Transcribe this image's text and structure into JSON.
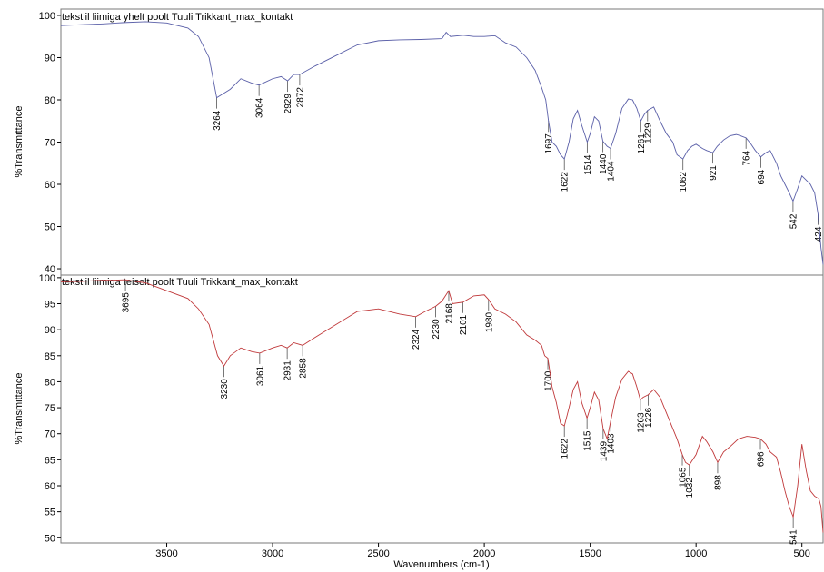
{
  "chart_data": [
    {
      "type": "line",
      "title": "tekstiil liimiga yhelt poolt Tuuli Trikkant_max_kontakt",
      "xlabel": "Wavenumbers (cm-1)",
      "ylabel": "%Transmittance",
      "xlim": [
        4000,
        400
      ],
      "x_reversed": true,
      "ylim": [
        38.5,
        101.5
      ],
      "xticks": [
        3500,
        3000,
        2500,
        2000,
        1500,
        1000,
        500
      ],
      "yticks": [
        40,
        50,
        60,
        70,
        80,
        90,
        100
      ],
      "color": "#5a5fa8",
      "series": [
        {
          "x": [
            4000,
            3900,
            3800,
            3700,
            3600,
            3500,
            3400,
            3350,
            3300,
            3264,
            3200,
            3150,
            3100,
            3064,
            3000,
            2960,
            2929,
            2900,
            2872,
            2800,
            2700,
            2600,
            2500,
            2400,
            2300,
            2200,
            2180,
            2160,
            2100,
            2050,
            2000,
            1950,
            1900,
            1850,
            1800,
            1760,
            1730,
            1710,
            1697,
            1680,
            1660,
            1640,
            1622,
            1600,
            1580,
            1560,
            1540,
            1514,
            1500,
            1480,
            1460,
            1440,
            1420,
            1404,
            1380,
            1350,
            1320,
            1300,
            1280,
            1261,
            1245,
            1229,
            1200,
            1170,
            1140,
            1110,
            1090,
            1062,
            1040,
            1020,
            1000,
            970,
            950,
            921,
            900,
            870,
            840,
            810,
            790,
            764,
            740,
            720,
            694,
            670,
            650,
            620,
            600,
            580,
            560,
            542,
            520,
            500,
            480,
            460,
            440,
            424,
            410,
            400
          ],
          "y": [
            97.6,
            97.8,
            98,
            98.3,
            98.5,
            98.2,
            97,
            95,
            90,
            80.5,
            82.5,
            85,
            84,
            83.5,
            85,
            85.5,
            84.5,
            86,
            86,
            88,
            90.5,
            93,
            94,
            94.2,
            94.3,
            94.5,
            96,
            95,
            95.3,
            95,
            95,
            95.2,
            93.5,
            92.5,
            90,
            87,
            83,
            80,
            75,
            70,
            69,
            67,
            66,
            70,
            75.5,
            77.5,
            74,
            70,
            72,
            76,
            75,
            70.2,
            69,
            68.5,
            72,
            78,
            80.2,
            80,
            78,
            75,
            76.5,
            77.5,
            78.3,
            75,
            72,
            70,
            67,
            66,
            68,
            69,
            69.5,
            68.5,
            68,
            67.5,
            69,
            70.5,
            71.5,
            71.8,
            71.5,
            71,
            69.5,
            68,
            66.5,
            67.5,
            68,
            65,
            62,
            60,
            58,
            56,
            59,
            62,
            61,
            60,
            58,
            53,
            45,
            41
          ]
        }
      ],
      "peaks": [
        "3264",
        "3064",
        "2929",
        "2872",
        "1697",
        "1622",
        "1514",
        "1440",
        "1404",
        "1261",
        "1229",
        "1062",
        "921",
        "764",
        "694",
        "542",
        "424"
      ]
    },
    {
      "type": "line",
      "title": "tekstiil liimiga teiselt poolt Tuuli Trikkant_max_kontakt",
      "xlabel": "Wavenumbers (cm-1)",
      "ylabel": "%Transmittance",
      "xlim": [
        4000,
        400
      ],
      "x_reversed": true,
      "ylim": [
        49,
        100.5
      ],
      "xticks": [
        3500,
        3000,
        2500,
        2000,
        1500,
        1000,
        500
      ],
      "yticks": [
        50,
        55,
        60,
        65,
        70,
        75,
        80,
        85,
        90,
        95,
        100
      ],
      "color": "#c0393b",
      "series": [
        {
          "x": [
            4000,
            3900,
            3800,
            3760,
            3700,
            3695,
            3650,
            3600,
            3500,
            3400,
            3350,
            3300,
            3260,
            3230,
            3200,
            3150,
            3100,
            3061,
            3000,
            2960,
            2931,
            2900,
            2858,
            2800,
            2700,
            2600,
            2500,
            2400,
            2324,
            2280,
            2230,
            2200,
            2168,
            2150,
            2101,
            2050,
            2000,
            1980,
            1950,
            1900,
            1850,
            1800,
            1760,
            1730,
            1715,
            1700,
            1680,
            1660,
            1640,
            1622,
            1600,
            1580,
            1560,
            1540,
            1515,
            1500,
            1480,
            1460,
            1439,
            1420,
            1403,
            1380,
            1350,
            1320,
            1300,
            1280,
            1263,
            1250,
            1226,
            1200,
            1170,
            1140,
            1110,
            1090,
            1065,
            1050,
            1032,
            1000,
            970,
            950,
            920,
            898,
            870,
            840,
            800,
            760,
            720,
            696,
            670,
            650,
            620,
            600,
            580,
            560,
            541,
            520,
            500,
            480,
            460,
            440,
            420,
            410,
            400
          ],
          "y": [
            99.2,
            99.3,
            99.5,
            99.5,
            99.6,
            99.6,
            99.3,
            99,
            97.5,
            96,
            94,
            91,
            85,
            83,
            85,
            86.5,
            85.8,
            85.5,
            86.5,
            87,
            86.5,
            87.5,
            87,
            88.5,
            91,
            93.5,
            94,
            93,
            92.5,
            93.5,
            94.5,
            95.5,
            97.5,
            95,
            95.3,
            96.5,
            96.7,
            95.8,
            94,
            93,
            91.5,
            89,
            88,
            87,
            85,
            84.5,
            79,
            76,
            72,
            71.5,
            75,
            78.5,
            80,
            76,
            73,
            75,
            78,
            76.5,
            71,
            69,
            72.5,
            77,
            80.5,
            82,
            81.5,
            79,
            76.5,
            77,
            77.5,
            78.5,
            77,
            74,
            71,
            69,
            66,
            64.5,
            64,
            66,
            69.5,
            68.5,
            66.5,
            64.5,
            66.5,
            67.5,
            69,
            69.5,
            69.3,
            69,
            68,
            66.5,
            65.5,
            62.5,
            59,
            56,
            54,
            60,
            68,
            63,
            59,
            58,
            57.5,
            56,
            51
          ]
        }
      ],
      "peaks": [
        "3695",
        "3230",
        "3061",
        "2931",
        "2858",
        "2324",
        "2230",
        "2168",
        "2101",
        "1980",
        "1700",
        "1622",
        "1515",
        "1439",
        "1403",
        "1263",
        "1226",
        "1065",
        "1032",
        "898",
        "696",
        "541"
      ]
    }
  ]
}
